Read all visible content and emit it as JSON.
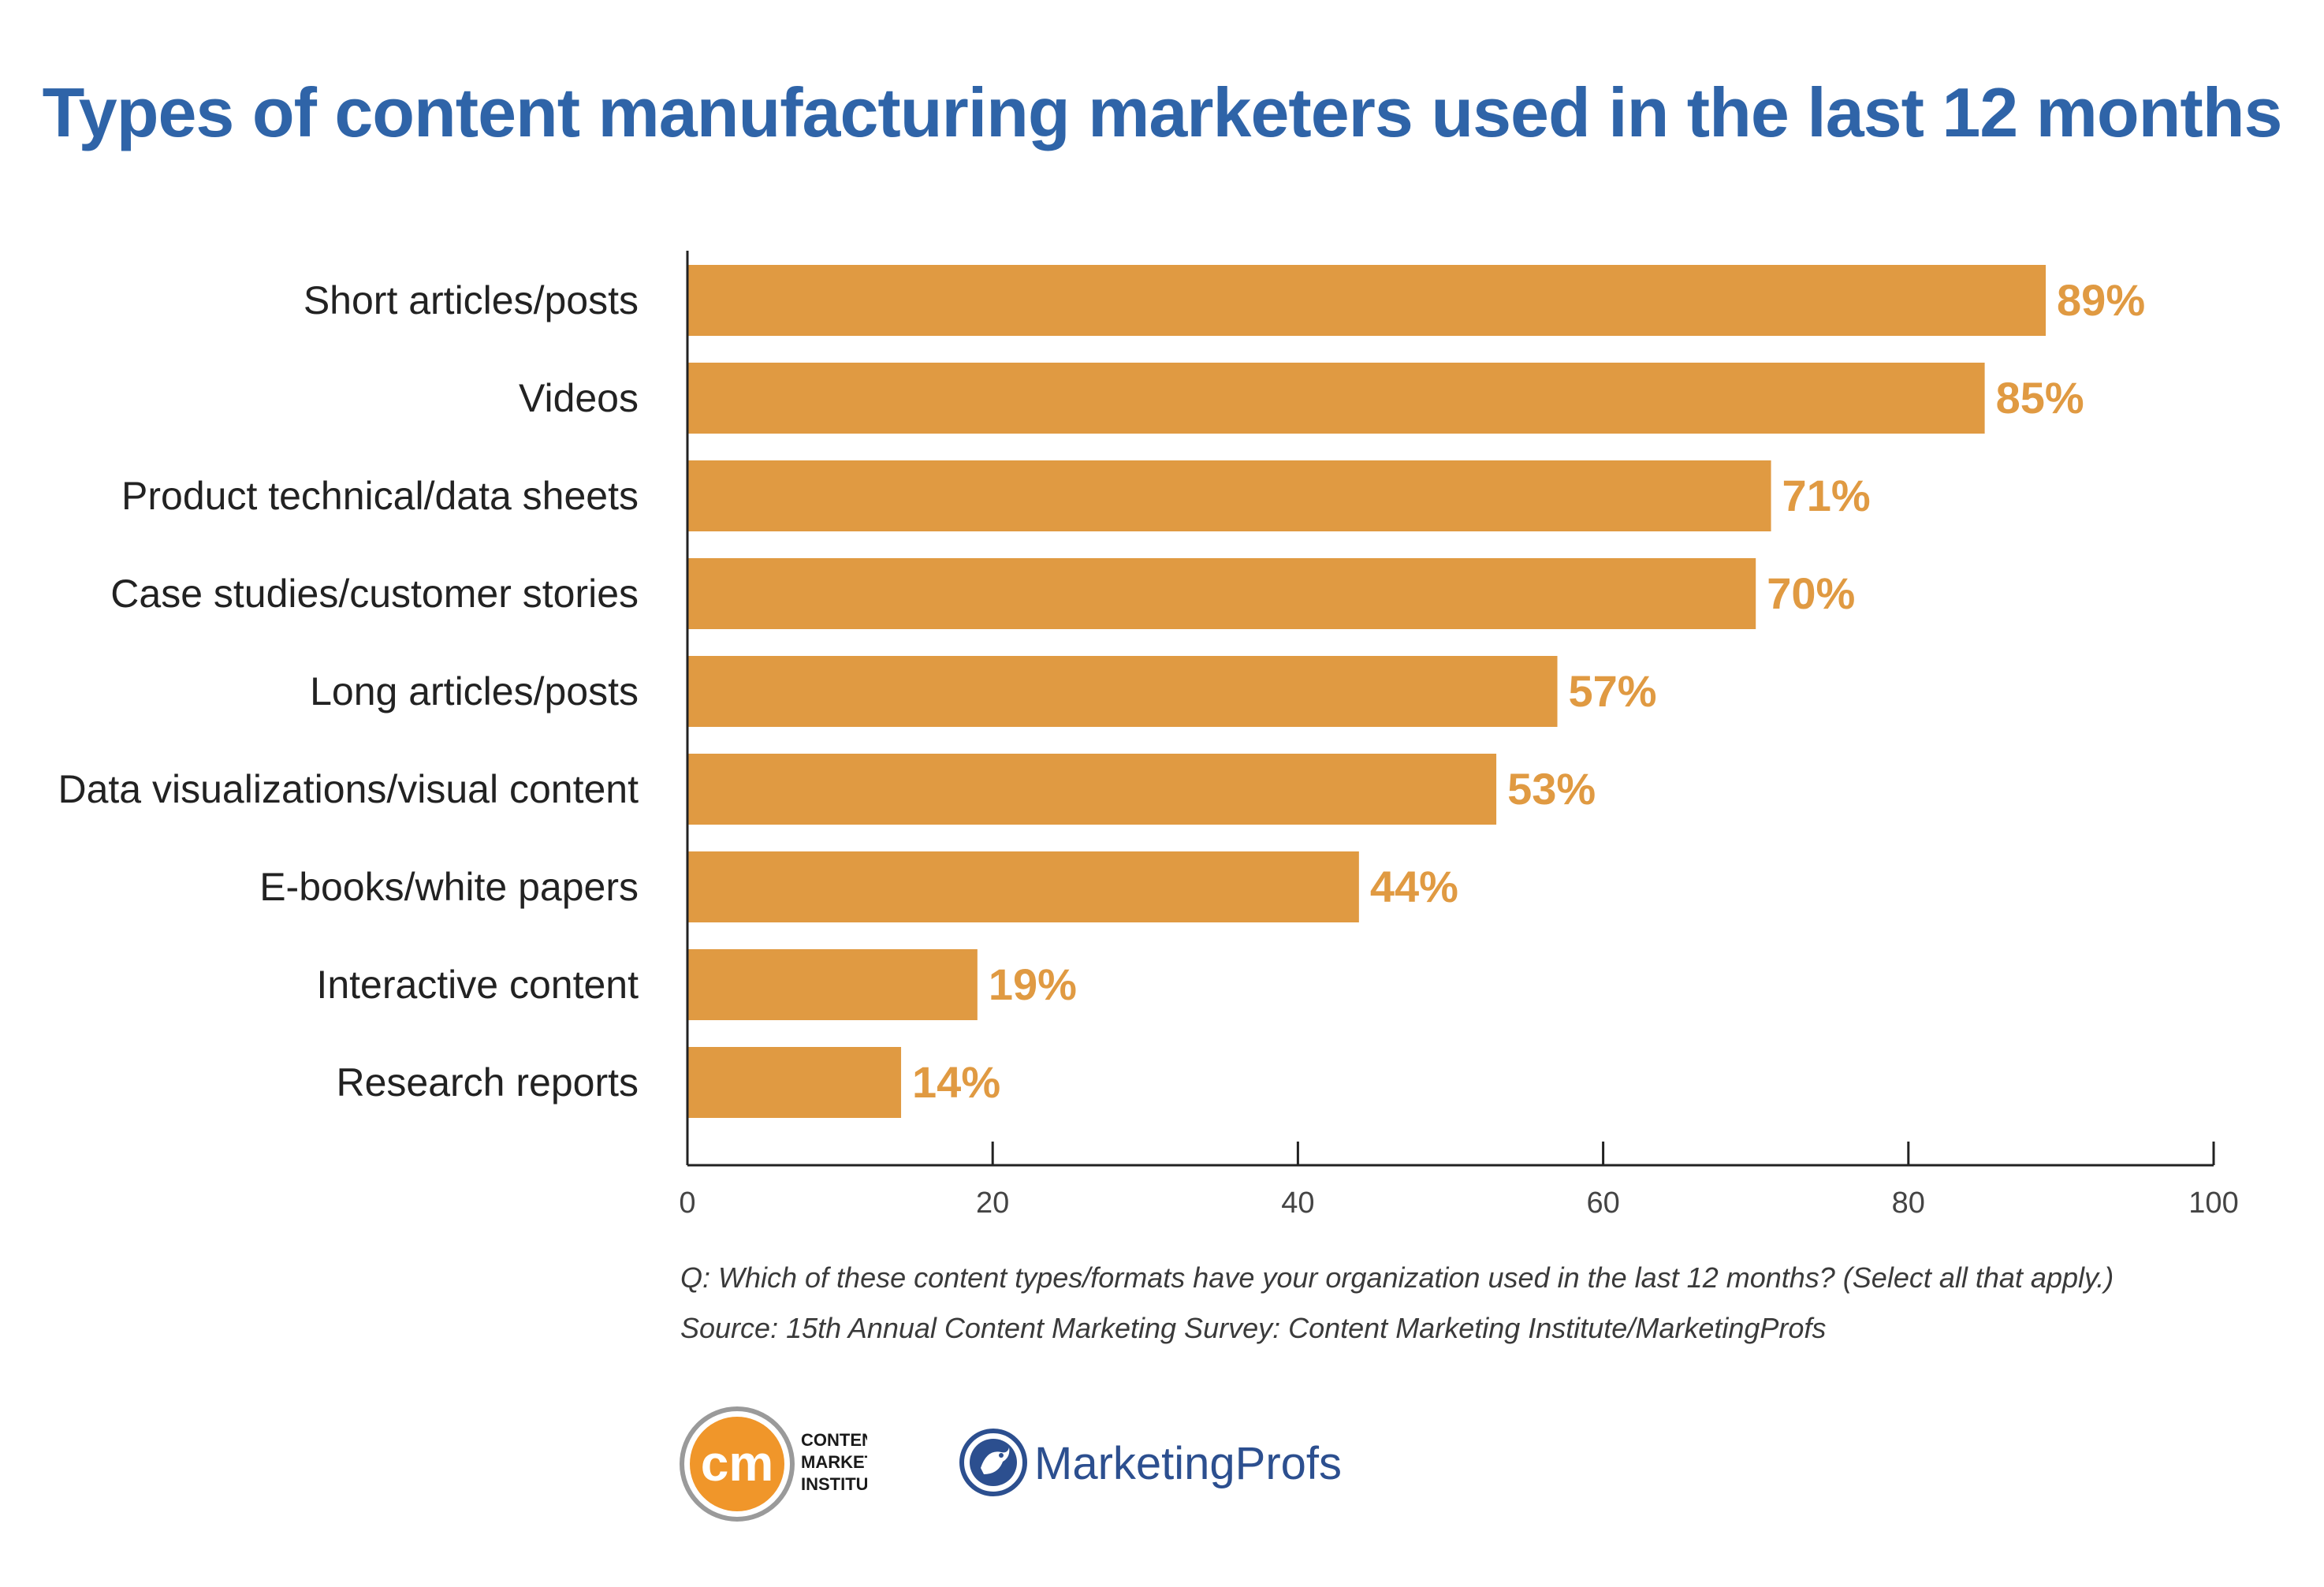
{
  "title": "Types of content manufacturing marketers used in the last 12 months",
  "chart_data": {
    "type": "bar",
    "orientation": "horizontal",
    "title": "Types of content manufacturing marketers used in the last 12 months",
    "categories": [
      "Short articles/posts",
      "Videos",
      "Product technical/data sheets",
      "Case studies/customer stories",
      "Long articles/posts",
      "Data visualizations/visual content",
      "E-books/white papers",
      "Interactive content",
      "Research reports"
    ],
    "values": [
      89,
      85,
      71,
      70,
      57,
      53,
      44,
      19,
      14
    ],
    "value_labels": [
      "89%",
      "85%",
      "71%",
      "70%",
      "57%",
      "53%",
      "44%",
      "19%",
      "14%"
    ],
    "xlim": [
      0,
      100
    ],
    "x_ticks": [
      "0",
      "20",
      "40",
      "60",
      "80",
      "100"
    ],
    "xlabel": "",
    "ylabel": "",
    "bar_color": "#e09a42",
    "label_color": "#e09a42",
    "grid": false
  },
  "footnotes": {
    "question": "Q: Which of these content types/formats have your organization used in the last 12 months? (Select all that apply.)",
    "source": "Source: 15th Annual Content Marketing Survey: Content Marketing Institute/MarketingProfs"
  },
  "logos": {
    "cmi": {
      "mark": "cm",
      "line1": "CONTENT",
      "line2": "MARKETING",
      "line3": "INSTITUTE™",
      "color": "#f0962a"
    },
    "marketingprofs": {
      "name": "MarketingProfs",
      "icon": "bird-icon",
      "color": "#2c4f8f"
    }
  },
  "colors": {
    "title": "#2f64a8",
    "bar": "#e09a42",
    "text": "#222222"
  }
}
